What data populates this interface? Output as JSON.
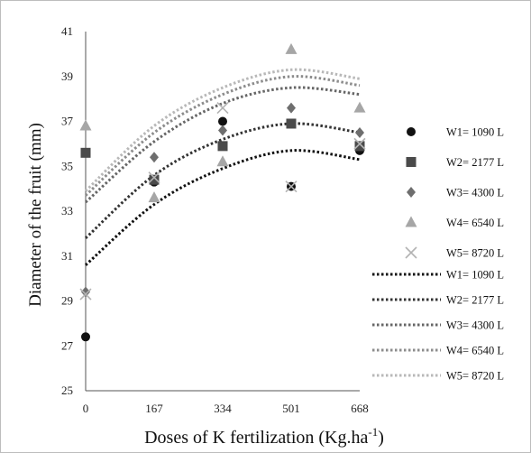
{
  "chart_data": {
    "type": "scatter",
    "xlabel": "Doses of K fertilization  (Kg.ha",
    "xlabel_sup": "-1",
    "xlabel_close": ")",
    "ylabel": "Diameter  of the fruit (mm)",
    "x_ticks": [
      "0",
      "167",
      "334",
      "501",
      "668"
    ],
    "y_ticks": [
      "25",
      "27",
      "29",
      "31",
      "33",
      "35",
      "37",
      "39",
      "41"
    ],
    "xlim": [
      0,
      668
    ],
    "ylim": [
      25,
      41
    ],
    "x": [
      0,
      167,
      334,
      501,
      668
    ],
    "series": [
      {
        "name": "W1= 1090 L",
        "marker": "circle",
        "color": "#111111",
        "values": [
          27.4,
          34.3,
          37.0,
          34.1,
          35.7
        ]
      },
      {
        "name": "W2= 2177 L",
        "marker": "square",
        "color": "#4a4a4a",
        "values": [
          35.6,
          34.4,
          35.9,
          36.9,
          35.9
        ]
      },
      {
        "name": "W3= 4300 L",
        "marker": "diamond",
        "color": "#6e6e6e",
        "values": [
          29.4,
          35.4,
          36.6,
          37.6,
          36.5
        ]
      },
      {
        "name": "W4= 6540 L",
        "marker": "triangle",
        "color": "#a6a6a6",
        "values": [
          36.8,
          33.6,
          35.2,
          40.2,
          37.6
        ]
      },
      {
        "name": "W5= 8720 L",
        "marker": "x",
        "color": "#b3b3b3",
        "values": [
          29.3,
          34.5,
          37.6,
          34.1,
          36.0
        ]
      }
    ],
    "trendlines": [
      {
        "name": "W1= 1090 L",
        "color": "#111111",
        "x": [
          0,
          167,
          334,
          501,
          668
        ],
        "values": [
          30.6,
          33.3,
          34.9,
          35.7,
          35.3
        ]
      },
      {
        "name": "W2= 2177 L",
        "color": "#333333",
        "x": [
          0,
          167,
          334,
          501,
          668
        ],
        "values": [
          31.8,
          34.6,
          36.2,
          36.9,
          36.5
        ]
      },
      {
        "name": "W3= 4300 L",
        "color": "#666666",
        "x": [
          0,
          167,
          334,
          501,
          668
        ],
        "values": [
          33.4,
          36.1,
          37.8,
          38.5,
          38.2
        ]
      },
      {
        "name": "W4= 6540 L",
        "color": "#8c8c8c",
        "x": [
          0,
          167,
          334,
          501,
          668
        ],
        "values": [
          33.7,
          36.5,
          38.2,
          39.0,
          38.6
        ]
      },
      {
        "name": "W5= 8720 L",
        "color": "#b8b8b8",
        "x": [
          0,
          167,
          334,
          501,
          668
        ],
        "values": [
          33.9,
          36.8,
          38.5,
          39.3,
          38.9
        ]
      }
    ],
    "legend_position": "right",
    "grid": false
  }
}
